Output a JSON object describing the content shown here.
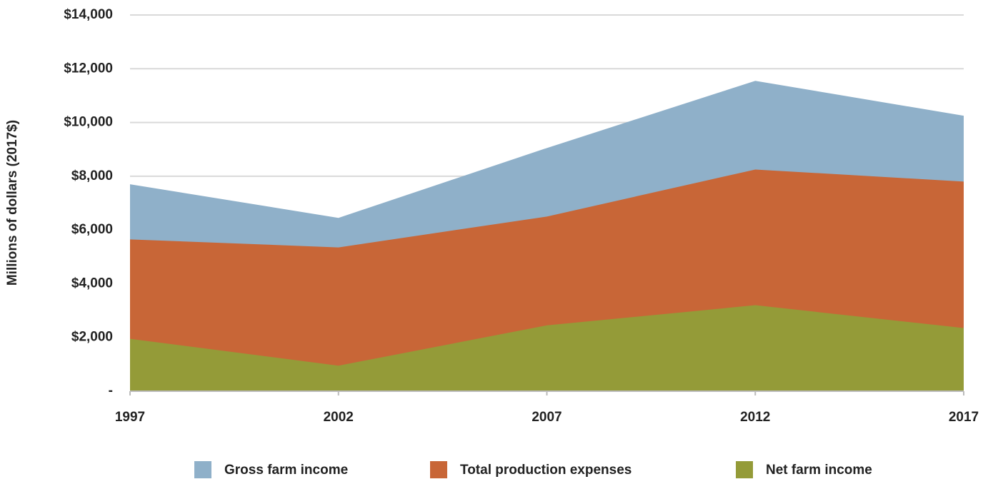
{
  "chart_data": {
    "type": "area",
    "y_label": "Millions of dollars (2017$)",
    "categories": [
      "1997",
      "2002",
      "2007",
      "2012",
      "2017"
    ],
    "series": [
      {
        "name": "Gross farm income",
        "color": "#8fb0c9",
        "values": [
          7700,
          6450,
          9050,
          11550,
          10250
        ]
      },
      {
        "name": "Total production expenses",
        "color": "#c86637",
        "values": [
          5650,
          5350,
          6500,
          8250,
          7800
        ]
      },
      {
        "name": "Net farm income",
        "color": "#949b38",
        "values": [
          1950,
          950,
          2450,
          3200,
          2350
        ]
      }
    ],
    "ylim": [
      0,
      14000
    ],
    "yticks": [
      {
        "value": 0,
        "label": "-"
      },
      {
        "value": 2000,
        "label": "$2,000"
      },
      {
        "value": 4000,
        "label": "$4,000"
      },
      {
        "value": 6000,
        "label": "$6,000"
      },
      {
        "value": 8000,
        "label": "$8,000"
      },
      {
        "value": 10000,
        "label": "$10,000"
      },
      {
        "value": 12000,
        "label": "$12,000"
      },
      {
        "value": 14000,
        "label": "$14,000"
      }
    ],
    "grid": true,
    "legend": "bottom"
  }
}
